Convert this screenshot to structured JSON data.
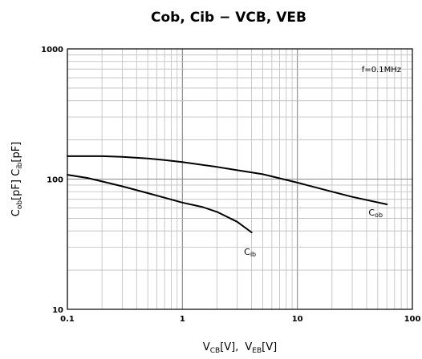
{
  "chart_data": {
    "type": "line",
    "title": "Cob, Cib − VCB, VEB",
    "x_axis": {
      "scale": "log",
      "range": [
        0.1,
        100
      ],
      "ticks": [
        "0.1",
        "1",
        "10",
        "100"
      ],
      "label": {
        "a": "V",
        "a_sub": "CB",
        "a_unit": "[V],",
        "b": "V",
        "b_sub": "EB",
        "b_unit": "[V]"
      }
    },
    "y_axis": {
      "scale": "log",
      "range": [
        10,
        1000
      ],
      "ticks": [
        "10",
        "100",
        "1000"
      ],
      "label": {
        "a": "C",
        "a_sub": "ob",
        "a_unit": "[pF] ",
        "b": "C",
        "b_sub": "ib",
        "b_unit": "[pF]"
      }
    },
    "grid": true,
    "annotations": [
      "f=0.1MHz"
    ],
    "series": [
      {
        "name": "Cob",
        "label_main": "C",
        "label_sub": "ob",
        "x": [
          0.1,
          0.2,
          0.3,
          0.5,
          0.7,
          1,
          2,
          3,
          5,
          10,
          20,
          30,
          60
        ],
        "y": [
          150,
          150,
          148,
          144,
          140,
          135,
          124,
          117,
          109,
          94,
          80,
          73,
          64
        ]
      },
      {
        "name": "Cib",
        "label_main": "C",
        "label_sub": "ib",
        "x": [
          0.1,
          0.15,
          0.2,
          0.3,
          0.5,
          0.7,
          1,
          1.5,
          2,
          3,
          4
        ],
        "y": [
          108,
          102,
          96,
          88,
          78,
          72,
          66,
          61,
          56,
          47,
          39
        ]
      }
    ]
  }
}
